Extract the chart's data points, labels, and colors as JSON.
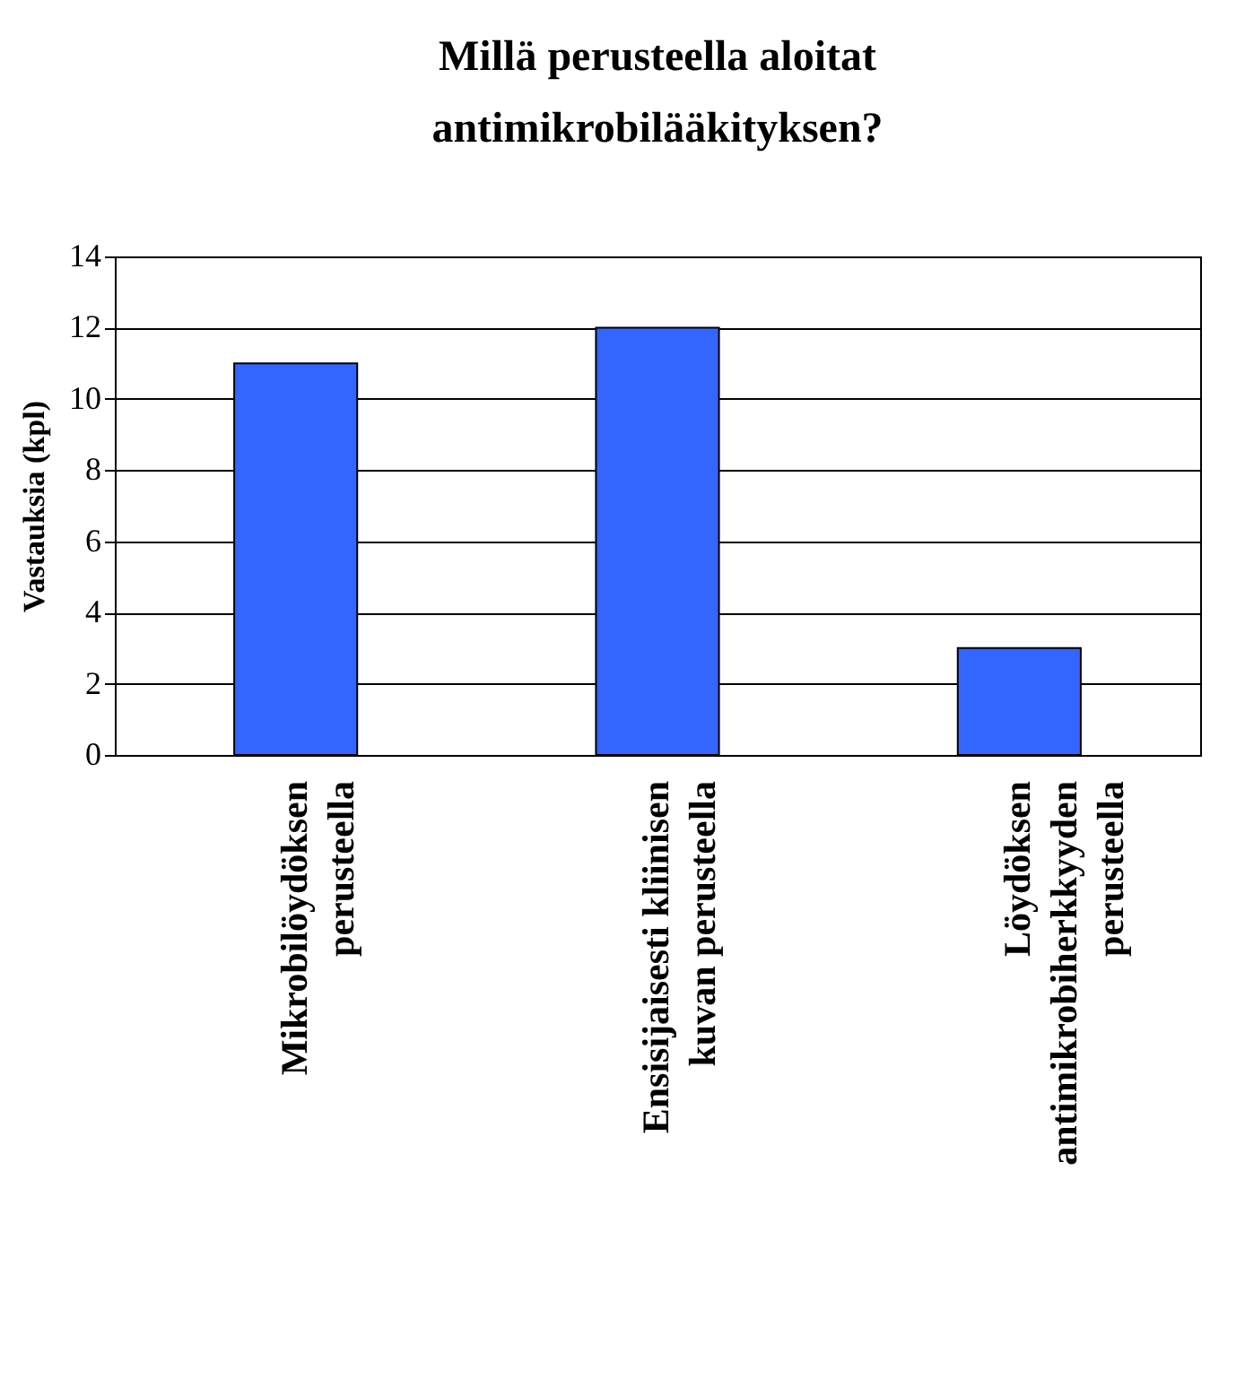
{
  "chart_data": {
    "type": "bar",
    "title": "Millä perusteella aloitat antimikrobilääkityksen?",
    "ylabel": "Vastauksia (kpl)",
    "categories": [
      "Mikrobilöydöksen perusteella",
      "Ensisijaisesti kliinisen kuvan perusteella",
      "Löydöksen antimikrobiherkkyyden perusteella"
    ],
    "values": [
      11,
      12,
      3
    ],
    "color": "#3366ff",
    "ylim": [
      0,
      14
    ],
    "yticks": [
      0,
      2,
      4,
      6,
      8,
      10,
      12,
      14
    ],
    "grid": "y"
  }
}
